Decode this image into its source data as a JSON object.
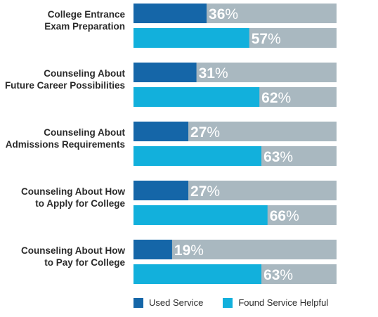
{
  "chart_data": {
    "type": "bar",
    "orientation": "horizontal",
    "categories": [
      [
        "College Entrance",
        "Exam Preparation"
      ],
      [
        "Counseling About",
        "Future Career Possibilities"
      ],
      [
        "Counseling About",
        "Admissions Requirements"
      ],
      [
        "Counseling About How",
        "to Apply for College"
      ],
      [
        "Counseling About How",
        "to Pay for College"
      ]
    ],
    "series": [
      {
        "name": "Used Service",
        "values": [
          36,
          31,
          27,
          27,
          19
        ]
      },
      {
        "name": "Found Service Helpful",
        "values": [
          57,
          62,
          63,
          66,
          63
        ]
      }
    ],
    "value_suffix": "%",
    "xlim": [
      0,
      100
    ],
    "grid": false,
    "legend_position": "bottom",
    "colors": {
      "used": "#1566a8",
      "helpful": "#12b0dc",
      "track": "#a9b8c0"
    }
  }
}
